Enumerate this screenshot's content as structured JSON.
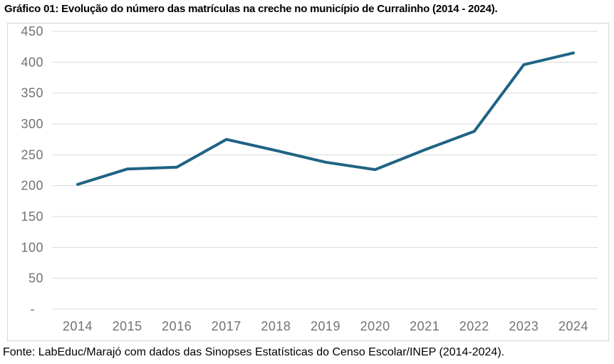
{
  "title": "Gráfico 01: Evolução do número das matrículas na creche no município de Curralinho (2014 - 2024).",
  "footer": "Fonte: LabEduc/Marajó com dados das Sinopses Estatísticas do Censo Escolar/INEP (2014-2024).",
  "colors": {
    "line": "#1f6384",
    "grid": "#d9d9d9",
    "frame_border": "#d9d9d9",
    "axis_text": "#737373",
    "text": "#000000",
    "background": "#ffffff"
  },
  "chart_data": {
    "type": "line",
    "title": "Gráfico 01: Evolução do número das matrículas na creche no município de Curralinho (2014 - 2024).",
    "source": "Fonte: LabEduc/Marajó com dados das Sinopses Estatísticas do Censo Escolar/INEP (2014-2024).",
    "categories": [
      "2014",
      "2015",
      "2016",
      "2017",
      "2018",
      "2019",
      "2020",
      "2021",
      "2022",
      "2023",
      "2024"
    ],
    "values": [
      202,
      227,
      230,
      275,
      257,
      238,
      226,
      258,
      288,
      396,
      415
    ],
    "xlabel": "",
    "ylabel": "",
    "ylim": [
      0,
      450
    ],
    "y_ticks": [
      450,
      400,
      350,
      300,
      250,
      200,
      150,
      100,
      50,
      0
    ],
    "y_tick_labels": [
      "450",
      "400",
      "350",
      "300",
      "250",
      "200",
      "150",
      "100",
      "50",
      "-"
    ],
    "grid": "horizontal",
    "legend": "none",
    "line_width": 4
  }
}
